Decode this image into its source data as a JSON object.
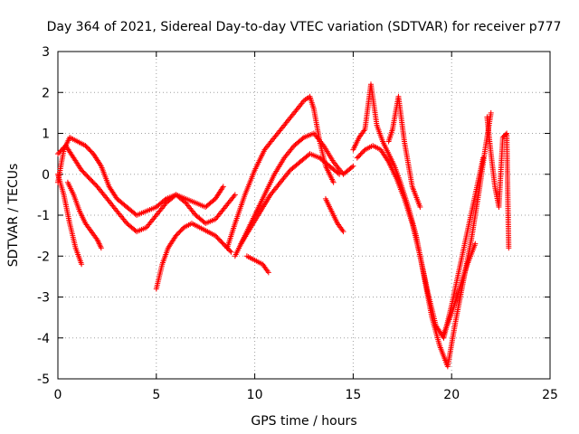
{
  "chart_data": {
    "type": "scatter",
    "title": "Day 364 of 2021, Sidereal Day-to-day VTEC variation (SDTVAR) for receiver p777",
    "xlabel": "GPS time / hours",
    "ylabel": "SDTVAR / TECUs",
    "xlim": [
      0,
      25
    ],
    "ylim": [
      -5,
      3
    ],
    "xticks": [
      "0",
      "5",
      "10",
      "15",
      "20",
      "25"
    ],
    "yticks": [
      "-5",
      "-4",
      "-3",
      "-2",
      "-1",
      "0",
      "1",
      "2",
      "3"
    ],
    "grid": true,
    "marker": "+",
    "color": "#ff0000",
    "series": [
      {
        "name": "s1",
        "x": [
          0.0,
          0.3,
          0.6,
          1.0,
          1.4,
          1.8,
          2.2,
          2.6,
          3.0,
          3.5,
          4.0,
          4.5,
          5.0,
          5.5,
          6.0,
          6.5,
          7.0,
          7.5,
          8.0,
          8.4
        ],
        "y": [
          -0.2,
          0.6,
          0.9,
          0.8,
          0.7,
          0.5,
          0.2,
          -0.3,
          -0.6,
          -0.8,
          -1.0,
          -0.9,
          -0.8,
          -0.6,
          -0.5,
          -0.6,
          -0.7,
          -0.8,
          -0.6,
          -0.3
        ]
      },
      {
        "name": "s2",
        "x": [
          0.0,
          0.4,
          0.8,
          1.2,
          1.6,
          2.0,
          2.5,
          3.0,
          3.5,
          4.0,
          4.5,
          5.0,
          5.5,
          6.0,
          6.5,
          7.0,
          7.5,
          8.0,
          8.5,
          9.0
        ],
        "y": [
          0.5,
          0.7,
          0.4,
          0.1,
          -0.1,
          -0.3,
          -0.6,
          -0.9,
          -1.2,
          -1.4,
          -1.3,
          -1.0,
          -0.7,
          -0.5,
          -0.7,
          -1.0,
          -1.2,
          -1.1,
          -0.8,
          -0.5
        ]
      },
      {
        "name": "s3",
        "x": [
          0.0,
          0.3,
          0.6,
          0.9,
          1.2
        ],
        "y": [
          0.0,
          -0.5,
          -1.2,
          -1.8,
          -2.2
        ]
      },
      {
        "name": "s4",
        "x": [
          0.5,
          0.8,
          1.1,
          1.4,
          1.7,
          2.0,
          2.2
        ],
        "y": [
          -0.2,
          -0.5,
          -0.9,
          -1.2,
          -1.4,
          -1.6,
          -1.8
        ]
      },
      {
        "name": "s5",
        "x": [
          5.0,
          5.3,
          5.6,
          6.0,
          6.4,
          6.8,
          7.2,
          7.6,
          8.0,
          8.4,
          8.8
        ],
        "y": [
          -2.8,
          -2.2,
          -1.8,
          -1.5,
          -1.3,
          -1.2,
          -1.3,
          -1.4,
          -1.5,
          -1.7,
          -1.9
        ]
      },
      {
        "name": "s6",
        "x": [
          8.6,
          9.0,
          9.5,
          10.0,
          10.5,
          11.0,
          11.5,
          12.0,
          12.5,
          12.8,
          13.0,
          13.3,
          13.6,
          14.0
        ],
        "y": [
          -1.8,
          -1.2,
          -0.5,
          0.1,
          0.6,
          0.9,
          1.2,
          1.5,
          1.8,
          1.9,
          1.6,
          0.8,
          0.2,
          -0.2
        ]
      },
      {
        "name": "s7",
        "x": [
          9.0,
          9.5,
          10.0,
          10.5,
          11.0,
          11.5,
          12.0,
          12.5,
          13.0,
          13.5,
          14.0,
          14.5,
          15.0
        ],
        "y": [
          -2.0,
          -1.5,
          -1.0,
          -0.5,
          0.0,
          0.4,
          0.7,
          0.9,
          1.0,
          0.7,
          0.3,
          0.0,
          0.2
        ]
      },
      {
        "name": "s8",
        "x": [
          9.3,
          9.8,
          10.3,
          10.8,
          11.3,
          11.8,
          12.3,
          12.8,
          13.3,
          13.8,
          14.3
        ],
        "y": [
          -1.7,
          -1.3,
          -0.9,
          -0.5,
          -0.2,
          0.1,
          0.3,
          0.5,
          0.4,
          0.2,
          0.0
        ]
      },
      {
        "name": "s9",
        "x": [
          9.6,
          10.0,
          10.4,
          10.7
        ],
        "y": [
          -2.0,
          -2.1,
          -2.2,
          -2.4
        ]
      },
      {
        "name": "s10",
        "x": [
          13.6,
          13.9,
          14.2,
          14.5
        ],
        "y": [
          -0.6,
          -0.9,
          -1.2,
          -1.4
        ]
      },
      {
        "name": "s11",
        "x": [
          15.0,
          15.3,
          15.6,
          15.9,
          16.2,
          16.5,
          16.8,
          17.1,
          17.4,
          17.8,
          18.2,
          18.6,
          19.0,
          19.4,
          19.8,
          20.2,
          20.6,
          21.0,
          21.4,
          21.7,
          22.0
        ],
        "y": [
          0.6,
          0.9,
          1.1,
          2.2,
          1.2,
          0.8,
          0.5,
          0.2,
          -0.2,
          -0.8,
          -1.5,
          -2.5,
          -3.5,
          -4.2,
          -4.7,
          -3.6,
          -2.6,
          -1.6,
          -0.4,
          0.6,
          1.5
        ]
      },
      {
        "name": "s12",
        "x": [
          15.2,
          15.6,
          16.0,
          16.4,
          16.8,
          17.2,
          17.6,
          18.0,
          18.4,
          18.8,
          19.2,
          19.6,
          20.0,
          20.4,
          20.8,
          21.2,
          21.6
        ],
        "y": [
          0.4,
          0.6,
          0.7,
          0.6,
          0.3,
          -0.1,
          -0.6,
          -1.2,
          -2.0,
          -2.9,
          -3.7,
          -4.0,
          -3.2,
          -2.3,
          -1.4,
          -0.5,
          0.4
        ]
      },
      {
        "name": "s13",
        "x": [
          16.8,
          17.0,
          17.3,
          17.6,
          18.0,
          18.4
        ],
        "y": [
          0.8,
          1.1,
          1.9,
          0.8,
          -0.3,
          -0.8
        ]
      },
      {
        "name": "s14",
        "x": [
          19.6,
          20.0,
          20.4,
          20.8,
          21.2
        ],
        "y": [
          -3.9,
          -3.4,
          -2.8,
          -2.2,
          -1.7
        ]
      },
      {
        "name": "s15",
        "x": [
          21.8,
          22.0,
          22.2,
          22.4,
          22.6,
          22.8,
          22.9
        ],
        "y": [
          1.4,
          0.5,
          -0.3,
          -0.8,
          0.9,
          1.0,
          -1.8
        ]
      }
    ]
  }
}
